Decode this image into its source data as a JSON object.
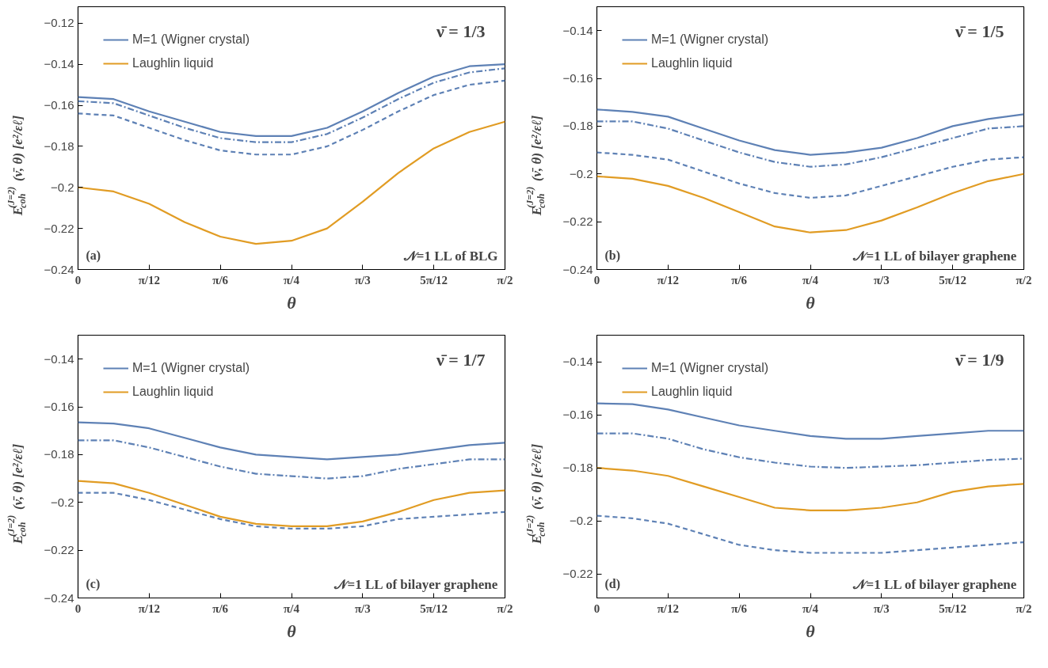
{
  "chart_data": [
    {
      "type": "line",
      "xlabel": "θ",
      "ylabel": "E$_{coh}$$^{(J=2)}$ (ν̄, θ) [e²/εℓ]",
      "annotations": [
        "ν̄ = 1/3",
        "(a)",
        "𝒩=1 LL of BLG"
      ],
      "legend": "top left",
      "grid": false,
      "x": [
        0,
        0.1309,
        0.2618,
        0.3927,
        0.5236,
        0.6545,
        0.7854,
        0.9163,
        1.0472,
        1.1781,
        1.309,
        1.4399,
        1.5708
      ],
      "xlim": [
        0,
        1.5708
      ],
      "xticks": [
        {
          "value": 0,
          "label": "0"
        },
        {
          "value": 0.2618,
          "label": "π/12"
        },
        {
          "value": 0.5236,
          "label": "π/6"
        },
        {
          "value": 0.7854,
          "label": "π/4"
        },
        {
          "value": 1.0472,
          "label": "π/3"
        },
        {
          "value": 1.309,
          "label": "5π/12"
        },
        {
          "value": 1.5708,
          "label": "π/2"
        }
      ],
      "ylim": [
        -0.24,
        -0.112
      ],
      "yticks": [
        {
          "value": -0.24,
          "label": "−0.24"
        },
        {
          "value": -0.22,
          "label": "−0.22"
        },
        {
          "value": -0.2,
          "label": "−0.2"
        },
        {
          "value": -0.18,
          "label": "−0.18"
        },
        {
          "value": -0.16,
          "label": "−0.16"
        },
        {
          "value": -0.14,
          "label": "−0.14"
        },
        {
          "value": -0.12,
          "label": "−0.12"
        }
      ],
      "series": [
        {
          "name": "M=1 (Wigner crystal)",
          "color": "#5e81b5",
          "line_style": "solid",
          "values": [
            -0.156,
            -0.157,
            -0.163,
            -0.168,
            -0.173,
            -0.175,
            -0.175,
            -0.171,
            -0.163,
            -0.154,
            -0.146,
            -0.141,
            -0.14
          ]
        },
        {
          "name": "Laughlin liquid",
          "color": "#e19c24",
          "line_style": "solid",
          "values": [
            -0.2,
            -0.202,
            -0.208,
            -0.217,
            -0.224,
            -0.2275,
            -0.226,
            -0.22,
            -0.207,
            -0.193,
            -0.181,
            -0.173,
            -0.168
          ]
        },
        {
          "color": "#5e81b5",
          "line_style": "dashdot",
          "values": [
            -0.158,
            -0.159,
            -0.165,
            -0.171,
            -0.176,
            -0.178,
            -0.178,
            -0.174,
            -0.166,
            -0.157,
            -0.149,
            -0.144,
            -0.142
          ]
        },
        {
          "color": "#5e81b5",
          "line_style": "dashed",
          "values": [
            -0.164,
            -0.165,
            -0.171,
            -0.177,
            -0.182,
            -0.184,
            -0.184,
            -0.18,
            -0.172,
            -0.163,
            -0.155,
            -0.15,
            -0.148
          ]
        }
      ]
    },
    {
      "type": "line",
      "xlabel": "θ",
      "ylabel": "E$_{coh}$$^{(J=2)}$ (ν̄, θ) [e²/εℓ]",
      "annotations": [
        "ν̄ = 1/5",
        "(b)",
        "𝒩=1 LL of bilayer graphene"
      ],
      "legend": "top left",
      "grid": false,
      "x": [
        0,
        0.1309,
        0.2618,
        0.3927,
        0.5236,
        0.6545,
        0.7854,
        0.9163,
        1.0472,
        1.1781,
        1.309,
        1.4399,
        1.5708
      ],
      "xlim": [
        0,
        1.5708
      ],
      "xticks": [
        {
          "value": 0,
          "label": "0"
        },
        {
          "value": 0.2618,
          "label": "π/12"
        },
        {
          "value": 0.5236,
          "label": "π/6"
        },
        {
          "value": 0.7854,
          "label": "π/4"
        },
        {
          "value": 1.0472,
          "label": "π/3"
        },
        {
          "value": 1.309,
          "label": "5π/12"
        },
        {
          "value": 1.5708,
          "label": "π/2"
        }
      ],
      "ylim": [
        -0.24,
        -0.13
      ],
      "yticks": [
        {
          "value": -0.24,
          "label": "−0.24"
        },
        {
          "value": -0.22,
          "label": "−0.22"
        },
        {
          "value": -0.2,
          "label": "−0.2"
        },
        {
          "value": -0.18,
          "label": "−0.18"
        },
        {
          "value": -0.16,
          "label": "−0.16"
        },
        {
          "value": -0.14,
          "label": "−0.14"
        }
      ],
      "series": [
        {
          "name": "M=1 (Wigner crystal)",
          "color": "#5e81b5",
          "line_style": "solid",
          "values": [
            -0.173,
            -0.174,
            -0.176,
            -0.181,
            -0.186,
            -0.19,
            -0.192,
            -0.191,
            -0.189,
            -0.185,
            -0.18,
            -0.177,
            -0.175
          ]
        },
        {
          "name": "Laughlin liquid",
          "color": "#e19c24",
          "line_style": "solid",
          "values": [
            -0.201,
            -0.202,
            -0.205,
            -0.21,
            -0.216,
            -0.222,
            -0.2245,
            -0.2235,
            -0.2195,
            -0.214,
            -0.208,
            -0.203,
            -0.2
          ]
        },
        {
          "color": "#5e81b5",
          "line_style": "dashdot",
          "values": [
            -0.178,
            -0.178,
            -0.181,
            -0.186,
            -0.191,
            -0.195,
            -0.197,
            -0.196,
            -0.193,
            -0.189,
            -0.185,
            -0.181,
            -0.18
          ]
        },
        {
          "color": "#5e81b5",
          "line_style": "dashed",
          "values": [
            -0.191,
            -0.192,
            -0.194,
            -0.199,
            -0.204,
            -0.208,
            -0.21,
            -0.209,
            -0.205,
            -0.201,
            -0.197,
            -0.194,
            -0.193
          ]
        }
      ]
    },
    {
      "type": "line",
      "xlabel": "θ",
      "ylabel": "E$_{coh}$$^{(J=2)}$ (ν̄, θ) [e²/εℓ]",
      "annotations": [
        "ν̄ = 1/7",
        "(c)",
        "𝒩=1 LL of bilayer graphene"
      ],
      "legend": "top left",
      "grid": false,
      "x": [
        0,
        0.1309,
        0.2618,
        0.3927,
        0.5236,
        0.6545,
        0.7854,
        0.9163,
        1.0472,
        1.1781,
        1.309,
        1.4399,
        1.5708
      ],
      "xlim": [
        0,
        1.5708
      ],
      "xticks": [
        {
          "value": 0,
          "label": "0"
        },
        {
          "value": 0.2618,
          "label": "π/12"
        },
        {
          "value": 0.5236,
          "label": "π/6"
        },
        {
          "value": 0.7854,
          "label": "π/4"
        },
        {
          "value": 1.0472,
          "label": "π/3"
        },
        {
          "value": 1.309,
          "label": "5π/12"
        },
        {
          "value": 1.5708,
          "label": "π/2"
        }
      ],
      "ylim": [
        -0.24,
        -0.13
      ],
      "yticks": [
        {
          "value": -0.24,
          "label": "−0.24"
        },
        {
          "value": -0.22,
          "label": "−0.22"
        },
        {
          "value": -0.2,
          "label": "−0.2"
        },
        {
          "value": -0.18,
          "label": "−0.18"
        },
        {
          "value": -0.16,
          "label": "−0.16"
        },
        {
          "value": -0.14,
          "label": "−0.14"
        }
      ],
      "series": [
        {
          "name": "M=1 (Wigner crystal)",
          "color": "#5e81b5",
          "line_style": "solid",
          "values": [
            -0.1665,
            -0.167,
            -0.169,
            -0.173,
            -0.177,
            -0.18,
            -0.181,
            -0.182,
            -0.181,
            -0.18,
            -0.178,
            -0.176,
            -0.175
          ]
        },
        {
          "name": "Laughlin liquid",
          "color": "#e19c24",
          "line_style": "solid",
          "values": [
            -0.191,
            -0.192,
            -0.196,
            -0.201,
            -0.206,
            -0.209,
            -0.21,
            -0.21,
            -0.208,
            -0.204,
            -0.199,
            -0.196,
            -0.195
          ]
        },
        {
          "color": "#5e81b5",
          "line_style": "dashdot",
          "values": [
            -0.174,
            -0.174,
            -0.177,
            -0.181,
            -0.185,
            -0.188,
            -0.189,
            -0.19,
            -0.189,
            -0.186,
            -0.184,
            -0.182,
            -0.182
          ]
        },
        {
          "color": "#5e81b5",
          "line_style": "dashed",
          "values": [
            -0.196,
            -0.196,
            -0.199,
            -0.203,
            -0.207,
            -0.21,
            -0.211,
            -0.211,
            -0.21,
            -0.207,
            -0.206,
            -0.205,
            -0.204
          ]
        }
      ]
    },
    {
      "type": "line",
      "xlabel": "θ",
      "ylabel": "E$_{coh}$$^{(J=2)}$ (ν̄, θ) [e²/εℓ]",
      "annotations": [
        "ν̄ = 1/9",
        "(d)",
        "𝒩=1 LL of bilayer graphene"
      ],
      "legend": "top left",
      "grid": false,
      "x": [
        0,
        0.1309,
        0.2618,
        0.3927,
        0.5236,
        0.6545,
        0.7854,
        0.9163,
        1.0472,
        1.1781,
        1.309,
        1.4399,
        1.5708
      ],
      "xlim": [
        0,
        1.5708
      ],
      "xticks": [
        {
          "value": 0,
          "label": "0"
        },
        {
          "value": 0.2618,
          "label": "π/12"
        },
        {
          "value": 0.5236,
          "label": "π/6"
        },
        {
          "value": 0.7854,
          "label": "π/4"
        },
        {
          "value": 1.0472,
          "label": "π/3"
        },
        {
          "value": 1.309,
          "label": "5π/12"
        },
        {
          "value": 1.5708,
          "label": "π/2"
        }
      ],
      "ylim": [
        -0.229,
        -0.13
      ],
      "yticks": [
        {
          "value": -0.22,
          "label": "−0.22"
        },
        {
          "value": -0.2,
          "label": "−0.2"
        },
        {
          "value": -0.18,
          "label": "−0.18"
        },
        {
          "value": -0.16,
          "label": "−0.16"
        },
        {
          "value": -0.14,
          "label": "−0.14"
        }
      ],
      "series": [
        {
          "name": "M=1 (Wigner crystal)",
          "color": "#5e81b5",
          "line_style": "solid",
          "values": [
            -0.1557,
            -0.156,
            -0.158,
            -0.161,
            -0.164,
            -0.166,
            -0.168,
            -0.169,
            -0.169,
            -0.168,
            -0.167,
            -0.166,
            -0.166
          ]
        },
        {
          "name": "Laughlin liquid",
          "color": "#e19c24",
          "line_style": "solid",
          "values": [
            -0.18,
            -0.181,
            -0.183,
            -0.187,
            -0.191,
            -0.195,
            -0.196,
            -0.196,
            -0.195,
            -0.193,
            -0.189,
            -0.187,
            -0.186
          ]
        },
        {
          "color": "#5e81b5",
          "line_style": "dashdot",
          "values": [
            -0.167,
            -0.167,
            -0.169,
            -0.173,
            -0.176,
            -0.178,
            -0.1795,
            -0.18,
            -0.1795,
            -0.179,
            -0.178,
            -0.177,
            -0.1765
          ]
        },
        {
          "color": "#5e81b5",
          "line_style": "dashed",
          "values": [
            -0.198,
            -0.199,
            -0.201,
            -0.205,
            -0.209,
            -0.211,
            -0.212,
            -0.212,
            -0.212,
            -0.211,
            -0.21,
            -0.209,
            -0.208
          ]
        }
      ]
    }
  ]
}
